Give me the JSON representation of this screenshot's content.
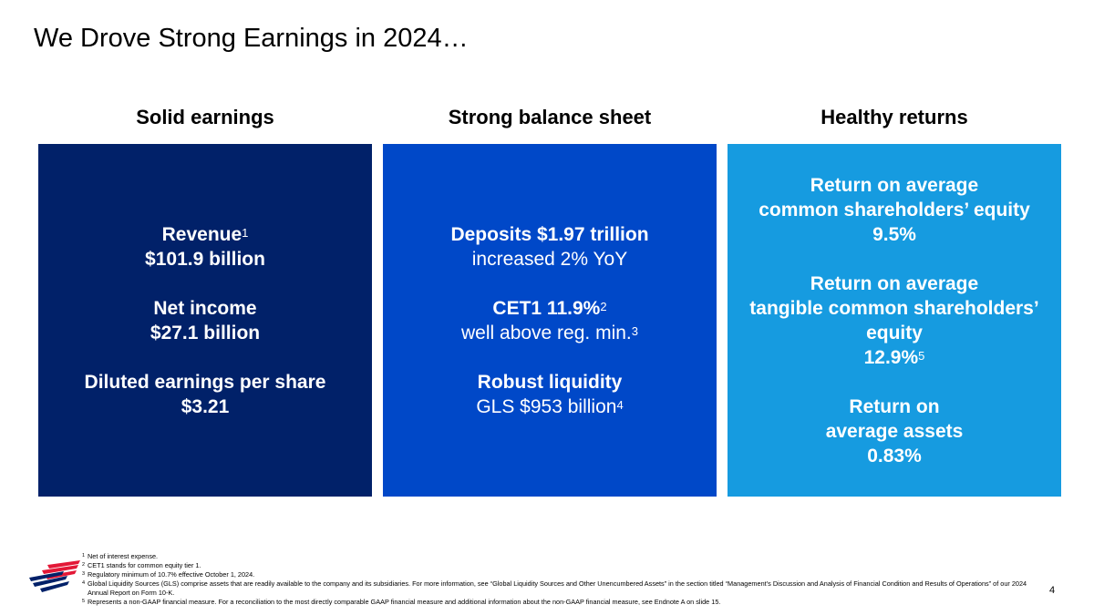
{
  "title": "We Drove Strong Earnings in 2024…",
  "columns": [
    {
      "heading": "Solid earnings",
      "color": "#012169",
      "lines": [
        {
          "text": "Revenue",
          "sup": "1",
          "bold": true
        },
        {
          "text": "$101.9 billion",
          "bold": true
        },
        {
          "gap": true
        },
        {
          "text": "Net income",
          "bold": true
        },
        {
          "text": "$27.1 billion",
          "bold": true
        },
        {
          "gap": true
        },
        {
          "text": "Diluted earnings per share",
          "bold": true
        },
        {
          "text": "$3.21",
          "bold": true
        }
      ]
    },
    {
      "heading": "Strong balance sheet",
      "color": "#0048c8",
      "lines": [
        {
          "text": "Deposits $1.97 trillion",
          "bold": true
        },
        {
          "text": "increased 2% YoY",
          "bold": false
        },
        {
          "gap": true
        },
        {
          "text": "CET1 11.9%",
          "sup": "2",
          "bold": true
        },
        {
          "text": "well above reg. min.",
          "sup": "3",
          "bold": false
        },
        {
          "gap": true
        },
        {
          "text": "Robust liquidity",
          "bold": true
        },
        {
          "text": "GLS $953 billion",
          "sup": "4",
          "bold": false
        }
      ]
    },
    {
      "heading": "Healthy returns",
      "color": "#169be0",
      "lines": [
        {
          "text": "Return on average",
          "bold": true
        },
        {
          "text": "common shareholders’ equity",
          "bold": true
        },
        {
          "text": "9.5%",
          "bold": true
        },
        {
          "gap": true
        },
        {
          "text": "Return on average",
          "bold": true
        },
        {
          "text": "tangible common shareholders’",
          "bold": true
        },
        {
          "text": "equity",
          "bold": true
        },
        {
          "text": "12.9%",
          "sup": "5",
          "bold": true
        },
        {
          "gap": true
        },
        {
          "text": "Return on",
          "bold": true
        },
        {
          "text": "average assets",
          "bold": true
        },
        {
          "text": "0.83%",
          "bold": true
        }
      ]
    }
  ],
  "footnotes": [
    {
      "num": "1",
      "text": "Net of interest expense."
    },
    {
      "num": "2",
      "text": "CET1 stands for common equity tier 1."
    },
    {
      "num": "3",
      "text": "Regulatory minimum of 10.7% effective October 1, 2024."
    },
    {
      "num": "4",
      "text": "Global Liquidity Sources (GLS) comprise assets that are readily available to the company and its subsidiaries. For more information, see “Global Liquidity Sources and Other Unencumbered Assets” in the section titled “Management’s Discussion and Analysis of Financial Condition and Results of Operations” of our 2024 Annual Report on Form 10-K."
    },
    {
      "num": "5",
      "text": "Represents a non-GAAP financial measure. For a reconciliation to the most directly comparable GAAP financial measure and additional information about the non-GAAP financial measure, see Endnote A on slide 15."
    }
  ],
  "page_number": "4",
  "logo": {
    "icon": "bank-flag-logo-icon",
    "red": "#e31837",
    "blue": "#012169"
  }
}
